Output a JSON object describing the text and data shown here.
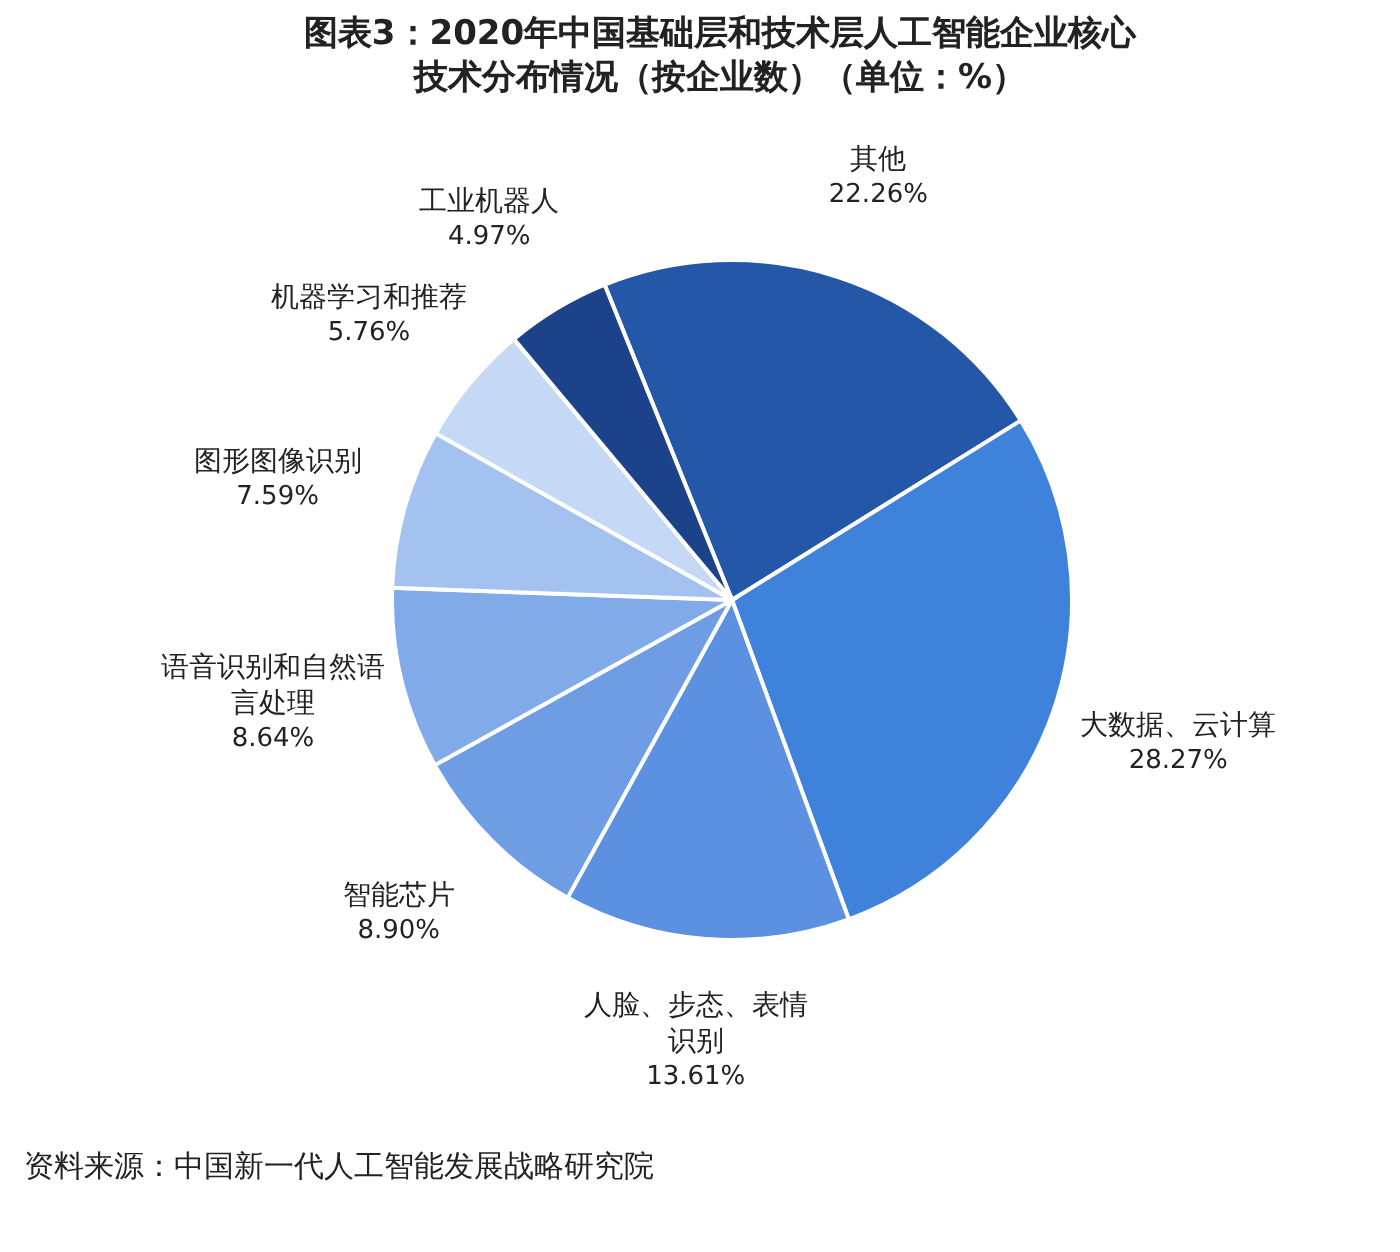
{
  "chart_data": {
    "type": "pie",
    "title": "图表3：2020年中国基础层和技术层人工智能企业核心技术分布情况（按企业数）（单位：%）",
    "categories": [
      "其他",
      "大数据、云计算",
      "人脸、步态、表情识别",
      "智能芯片",
      "语音识别和自然语言处理",
      "图形图像识别",
      "机器学习和推荐",
      "工业机器人"
    ],
    "values": [
      22.26,
      28.27,
      13.61,
      8.9,
      8.64,
      7.59,
      5.76,
      4.97
    ],
    "value_labels": [
      "22.26%",
      "28.27%",
      "13.61%",
      "8.90%",
      "8.64%",
      "7.59%",
      "5.76%",
      "4.97%"
    ],
    "colors": [
      "#2457a8",
      "#3f82dc",
      "#5b91e0",
      "#6e9de3",
      "#80aae8",
      "#a3c2f0",
      "#c5d9f6",
      "#1c4389"
    ],
    "annotations": [
      "资料来源：中国新一代人工智能发展战略研究院"
    ]
  }
}
